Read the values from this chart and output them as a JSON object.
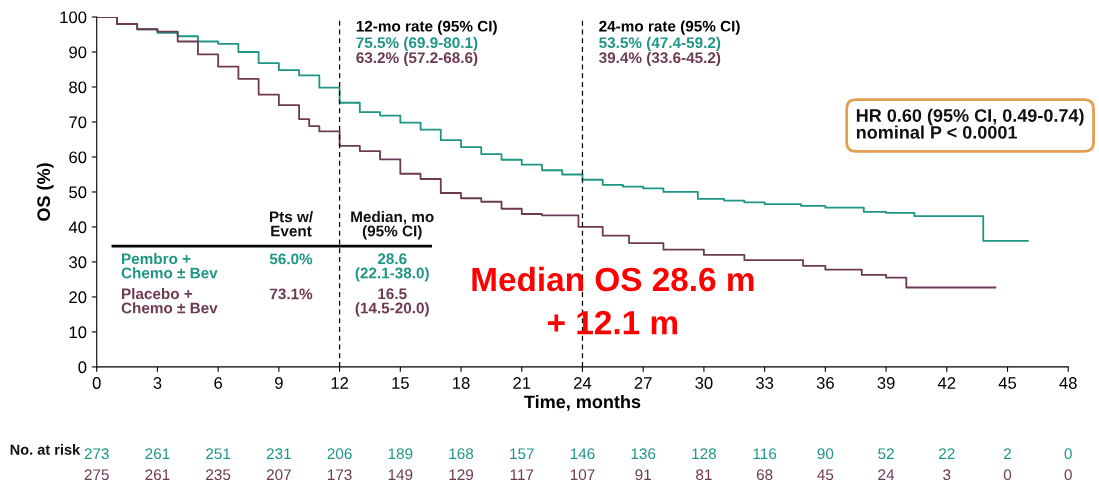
{
  "chart_data": {
    "type": "step",
    "xlabel": "Time, months",
    "ylabel": "OS (%)",
    "xlim": [
      0,
      48
    ],
    "xticks": [
      0,
      3,
      6,
      9,
      12,
      15,
      18,
      21,
      24,
      27,
      30,
      33,
      36,
      39,
      42,
      45,
      48
    ],
    "ylim": [
      0,
      100
    ],
    "yticks": [
      0,
      10,
      20,
      30,
      40,
      50,
      60,
      70,
      80,
      90,
      100
    ],
    "grid": false,
    "legend": false,
    "series": [
      {
        "name": "Pembro +\nChemo ± Bev",
        "color": "#1f9585",
        "x": [
          0,
          1,
          2,
          3,
          4,
          5,
          6,
          7,
          8,
          9,
          10,
          11,
          12,
          13,
          14,
          15,
          16,
          17,
          18,
          19,
          20,
          21,
          22,
          23,
          24,
          25,
          26,
          27,
          28,
          29.7,
          31,
          32,
          33,
          34.8,
          36,
          37.9,
          39,
          40.4,
          42,
          43.8,
          46
        ],
        "values": [
          100,
          98,
          96.5,
          95.5,
          94.5,
          93,
          92.3,
          90,
          86.8,
          84.8,
          83.3,
          79.8,
          75.5,
          72.8,
          71.8,
          69.8,
          67.8,
          64.8,
          62.8,
          60.8,
          59.2,
          57.8,
          56.2,
          55,
          53.5,
          52,
          51.5,
          51,
          50,
          48,
          47.5,
          47,
          46.5,
          46,
          45.5,
          44.3,
          44,
          43.1,
          43.1,
          36,
          36
        ]
      },
      {
        "name": "Placebo +\nChemo ± Bev",
        "color": "#6e3a52",
        "x": [
          0,
          1,
          2,
          3,
          4,
          5,
          6,
          7,
          8,
          9,
          10,
          10.5,
          11,
          12,
          13,
          14,
          15,
          16,
          17,
          18,
          19,
          20,
          21,
          22,
          23.8,
          25,
          26.3,
          28,
          30,
          32,
          34.9,
          36,
          37.8,
          39,
          40,
          42,
          44.4
        ],
        "values": [
          100,
          98,
          96.5,
          95.8,
          93,
          89.3,
          85.8,
          82.3,
          77.8,
          74.8,
          70.8,
          68.8,
          67.3,
          63.2,
          61.7,
          59.3,
          55.2,
          53.7,
          49.7,
          48.2,
          47.2,
          45.2,
          43.7,
          43.3,
          40,
          37.5,
          35.4,
          33.5,
          32,
          30.5,
          28.9,
          27.8,
          26.3,
          25.5,
          22.7,
          22.7,
          22.7
        ]
      }
    ],
    "ref_lines": [
      {
        "axis": "x",
        "value": 12,
        "label": "12-mo rate (95% CI)",
        "line_style": "dashed",
        "color": "#000000"
      },
      {
        "axis": "x",
        "value": 24,
        "label": "24-mo rate (95% CI)",
        "line_style": "dashed",
        "color": "#000000"
      }
    ],
    "annotations": [
      "75.5% (69.9-80.1)",
      "63.2% (57.2-68.6)",
      "53.5% (47.4-59.2)",
      "39.4% (33.6-45.2)",
      "HR 0.60 (95% CI, 0.49-0.74)\nnominal P < 0.0001",
      "Pts w/\nEvent",
      "Median, mo\n(95% CI)",
      "56.0%",
      "28.6\n(22.1-38.0)",
      "73.1%",
      "16.5\n(14.5-20.0)",
      "Median OS 28.6 m\n+ 12.1 m",
      "No. at risk",
      "273",
      "261",
      "251",
      "231",
      "206",
      "189",
      "168",
      "157",
      "146",
      "136",
      "128",
      "116",
      "90",
      "52",
      "22",
      "2",
      "0",
      "275",
      "261",
      "235",
      "207",
      "173",
      "149",
      "129",
      "117",
      "107",
      "91",
      "81",
      "68",
      "45",
      "24",
      "3",
      "0",
      "0"
    ]
  }
}
